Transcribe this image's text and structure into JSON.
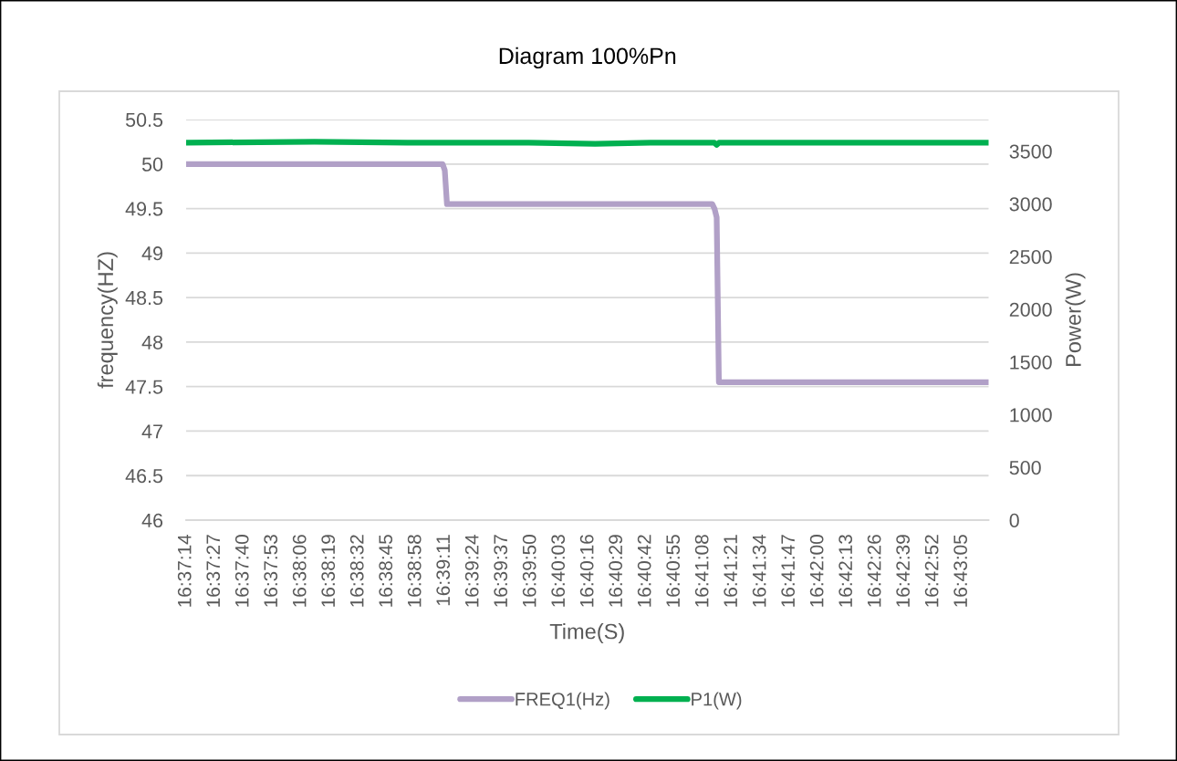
{
  "chart_data": {
    "type": "line",
    "title": "Diagram 100%Pn",
    "xlabel": "Time(S)",
    "ylabel": "frequency(HZ)",
    "y2label": "Power(W)",
    "series": [
      {
        "name": "FREQ1(Hz)",
        "color": "#b1a0c7",
        "axis": "y",
        "x": [
          16.620556,
          16.652778,
          16.653056,
          16.653333,
          16.686667,
          16.686944,
          16.687222,
          16.6875,
          16.721389
        ],
        "values": [
          50,
          50,
          49.93,
          49.55,
          49.55,
          49.5,
          49.4,
          47.55,
          47.55
        ]
      },
      {
        "name": "P1(W)",
        "color": "#00b050",
        "axis": "y2",
        "x": [
          16.620556,
          16.636667,
          16.648333,
          16.663611,
          16.671944,
          16.678889,
          16.686944,
          16.687222,
          16.6875,
          16.703889,
          16.721389
        ],
        "values": [
          3580,
          3590,
          3580,
          3580,
          3570,
          3580,
          3580,
          3560,
          3580,
          3580,
          3580
        ]
      }
    ],
    "xlim": [
      16.620556,
      16.721389
    ],
    "xticks": [
      {
        "value": 16.620556,
        "label": "16:37:14"
      },
      {
        "value": 16.624167,
        "label": "16:37:27"
      },
      {
        "value": 16.627778,
        "label": "16:37:40"
      },
      {
        "value": 16.631389,
        "label": "16:37:53"
      },
      {
        "value": 16.635,
        "label": "16:38:06"
      },
      {
        "value": 16.638611,
        "label": "16:38:19"
      },
      {
        "value": 16.642222,
        "label": "16:38:32"
      },
      {
        "value": 16.645833,
        "label": "16:38:45"
      },
      {
        "value": 16.649444,
        "label": "16:38:58"
      },
      {
        "value": 16.653056,
        "label": "16:39:11"
      },
      {
        "value": 16.656667,
        "label": "16:39:24"
      },
      {
        "value": 16.660278,
        "label": "16:39:37"
      },
      {
        "value": 16.663889,
        "label": "16:39:50"
      },
      {
        "value": 16.6675,
        "label": "16:40:03"
      },
      {
        "value": 16.671111,
        "label": "16:40:16"
      },
      {
        "value": 16.674722,
        "label": "16:40:29"
      },
      {
        "value": 16.678333,
        "label": "16:40:42"
      },
      {
        "value": 16.681944,
        "label": "16:40:55"
      },
      {
        "value": 16.685556,
        "label": "16:41:08"
      },
      {
        "value": 16.689167,
        "label": "16:41:21"
      },
      {
        "value": 16.692778,
        "label": "16:41:34"
      },
      {
        "value": 16.696389,
        "label": "16:41:47"
      },
      {
        "value": 16.7,
        "label": "16:42:00"
      },
      {
        "value": 16.703611,
        "label": "16:42:13"
      },
      {
        "value": 16.707222,
        "label": "16:42:26"
      },
      {
        "value": 16.710833,
        "label": "16:42:39"
      },
      {
        "value": 16.714444,
        "label": "16:42:52"
      },
      {
        "value": 16.718056,
        "label": "16:43:05"
      }
    ],
    "ylim": [
      46,
      50.5
    ],
    "yticks": [
      46,
      46.5,
      47,
      47.5,
      48,
      48.5,
      49,
      49.5,
      50,
      50.5
    ],
    "y2lim": [
      0,
      3800
    ],
    "y2ticks": [
      0,
      500,
      1000,
      1500,
      2000,
      2500,
      3000,
      3500
    ],
    "grid": "y",
    "legend": "bottom"
  }
}
